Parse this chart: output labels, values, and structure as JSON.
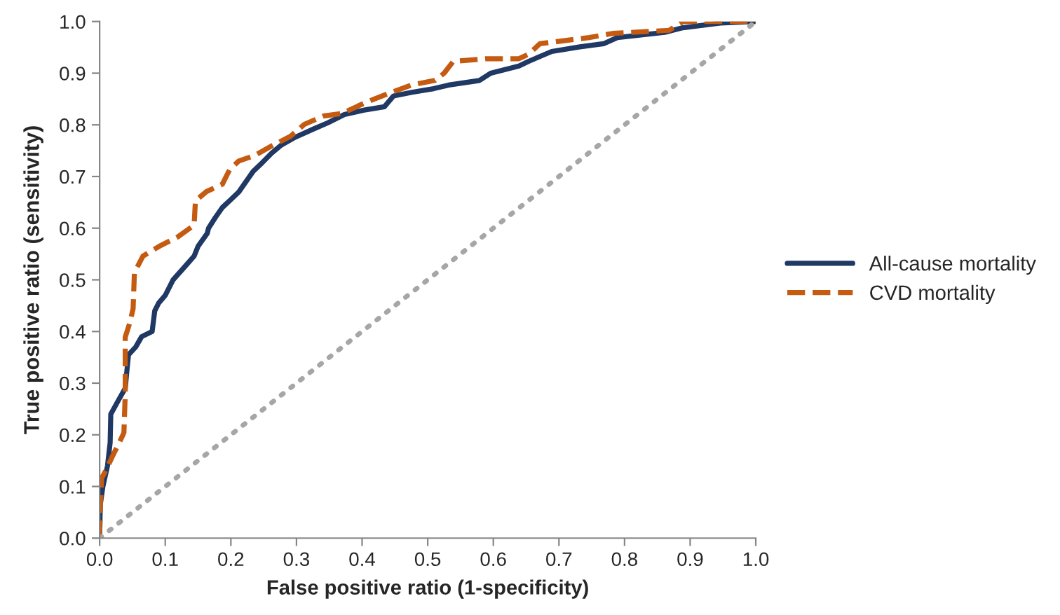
{
  "chart_data": {
    "type": "line",
    "xlabel": "False positive ratio (1-specificity)",
    "ylabel": "True positive ratio (sensitivity)",
    "xlim": [
      0,
      1
    ],
    "ylim": [
      0,
      1
    ],
    "xticks": [
      {
        "value": 0,
        "label": "0.0"
      },
      0.1,
      0.2,
      0.3,
      0.4,
      0.5,
      0.6,
      0.7,
      0.8,
      0.9,
      {
        "value": 1,
        "label": "1.0"
      }
    ],
    "yticks": [
      {
        "value": 0,
        "label": "0.0"
      },
      0.1,
      0.2,
      0.3,
      0.4,
      0.5,
      0.6,
      0.7,
      0.8,
      0.9,
      {
        "value": 1,
        "label": "1.0"
      }
    ],
    "grid": false,
    "legend": "right",
    "marker": "none",
    "series": [
      {
        "name": "All-cause mortality",
        "color": "#1f3864",
        "line_style": "solid",
        "x": [
          0,
          0.001,
          0.005,
          0.012,
          0.016,
          0.017,
          0.03,
          0.039,
          0.042,
          0.044,
          0.055,
          0.064,
          0.08,
          0.084,
          0.09,
          0.1,
          0.112,
          0.126,
          0.144,
          0.15,
          0.164,
          0.166,
          0.176,
          0.187,
          0.198,
          0.212,
          0.223,
          0.234,
          0.248,
          0.262,
          0.276,
          0.298,
          0.326,
          0.348,
          0.373,
          0.405,
          0.434,
          0.448,
          0.476,
          0.509,
          0.532,
          0.579,
          0.596,
          0.639,
          0.654,
          0.689,
          0.732,
          0.768,
          0.789,
          0.861,
          0.889,
          0.946,
          1
        ],
        "values": [
          0,
          0.065,
          0.1,
          0.14,
          0.185,
          0.24,
          0.27,
          0.29,
          0.33,
          0.355,
          0.37,
          0.39,
          0.4,
          0.44,
          0.455,
          0.47,
          0.5,
          0.52,
          0.546,
          0.565,
          0.59,
          0.6,
          0.62,
          0.64,
          0.653,
          0.67,
          0.69,
          0.71,
          0.727,
          0.745,
          0.76,
          0.776,
          0.792,
          0.804,
          0.82,
          0.829,
          0.835,
          0.856,
          0.863,
          0.87,
          0.877,
          0.886,
          0.9,
          0.914,
          0.923,
          0.942,
          0.951,
          0.957,
          0.969,
          0.979,
          0.988,
          0.997,
          1
        ]
      },
      {
        "name": "CVD mortality",
        "color": "#c55a11",
        "line_style": "dashed",
        "x": [
          0,
          0.001,
          0.003,
          0.009,
          0.019,
          0.03,
          0.037,
          0.039,
          0.039,
          0.046,
          0.051,
          0.053,
          0.066,
          0.091,
          0.119,
          0.144,
          0.146,
          0.163,
          0.187,
          0.198,
          0.212,
          0.237,
          0.262,
          0.291,
          0.312,
          0.341,
          0.369,
          0.405,
          0.441,
          0.475,
          0.511,
          0.525,
          0.539,
          0.589,
          0.639,
          0.654,
          0.671,
          0.746,
          0.782,
          0.868,
          0.889,
          1
        ],
        "values": [
          0,
          0.056,
          0.116,
          0.13,
          0.157,
          0.185,
          0.204,
          0.278,
          0.389,
          0.417,
          0.444,
          0.514,
          0.546,
          0.565,
          0.583,
          0.606,
          0.653,
          0.671,
          0.685,
          0.713,
          0.73,
          0.741,
          0.759,
          0.778,
          0.801,
          0.817,
          0.822,
          0.843,
          0.861,
          0.877,
          0.886,
          0.9,
          0.923,
          0.928,
          0.928,
          0.937,
          0.957,
          0.969,
          0.977,
          0.983,
          1,
          1
        ]
      },
      {
        "color": "#a6a6a6",
        "line_style": "dotted",
        "x": [
          0,
          1
        ],
        "values": [
          0,
          1
        ]
      }
    ]
  }
}
